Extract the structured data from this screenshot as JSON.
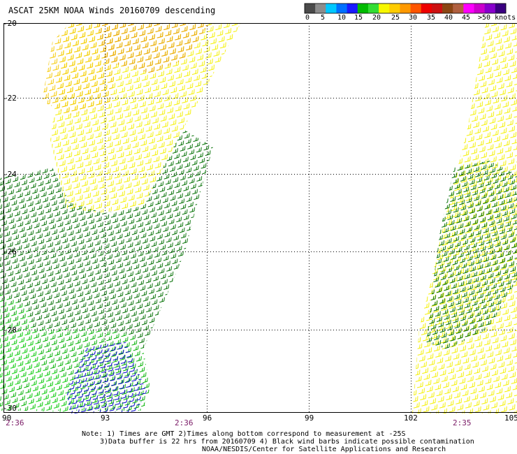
{
  "title": "ASCAT 25KM NOAA Winds 20160709 descending",
  "colorbar": {
    "labels": [
      "0",
      "5",
      "10",
      "15",
      "20",
      "25",
      "30",
      "35",
      "40",
      "45",
      ">50 knots"
    ],
    "colors": [
      "#4a4a4a",
      "#8c8c8c",
      "#00c8ff",
      "#0070ff",
      "#1a1aff",
      "#00bb00",
      "#33dd33",
      "#f7f700",
      "#ffcc00",
      "#ff9900",
      "#ff5500",
      "#ee0000",
      "#cc1111",
      "#8b4513",
      "#b06040",
      "#ff00ff",
      "#cc00cc",
      "#8800cc",
      "#3a0080"
    ]
  },
  "axes": {
    "lat_labels": [
      "-20",
      "-22",
      "-24",
      "-26",
      "-28",
      "-30"
    ],
    "lon_labels": [
      "90",
      "93",
      "96",
      "99",
      "102",
      "105"
    ],
    "time_labels": [
      "2:36",
      "2:36",
      "2:35"
    ]
  },
  "notes": [
    "Note: 1) Times are GMT 2)Times along bottom correspond to measurement at -25S",
    "3)Data buffer is 22 hrs from 20160709 4) Black wind barbs indicate possible contamination",
    "NOAA/NESDIS/Center for Satellite Applications and Research"
  ],
  "wind_colors": {
    "orange": "#e8a000",
    "yellow_dark": "#f5c800",
    "yellow": "#f4f000",
    "green_dark": "#006e00",
    "green": "#00b000",
    "green_light": "#30e030",
    "blue": "#0000cc"
  }
}
